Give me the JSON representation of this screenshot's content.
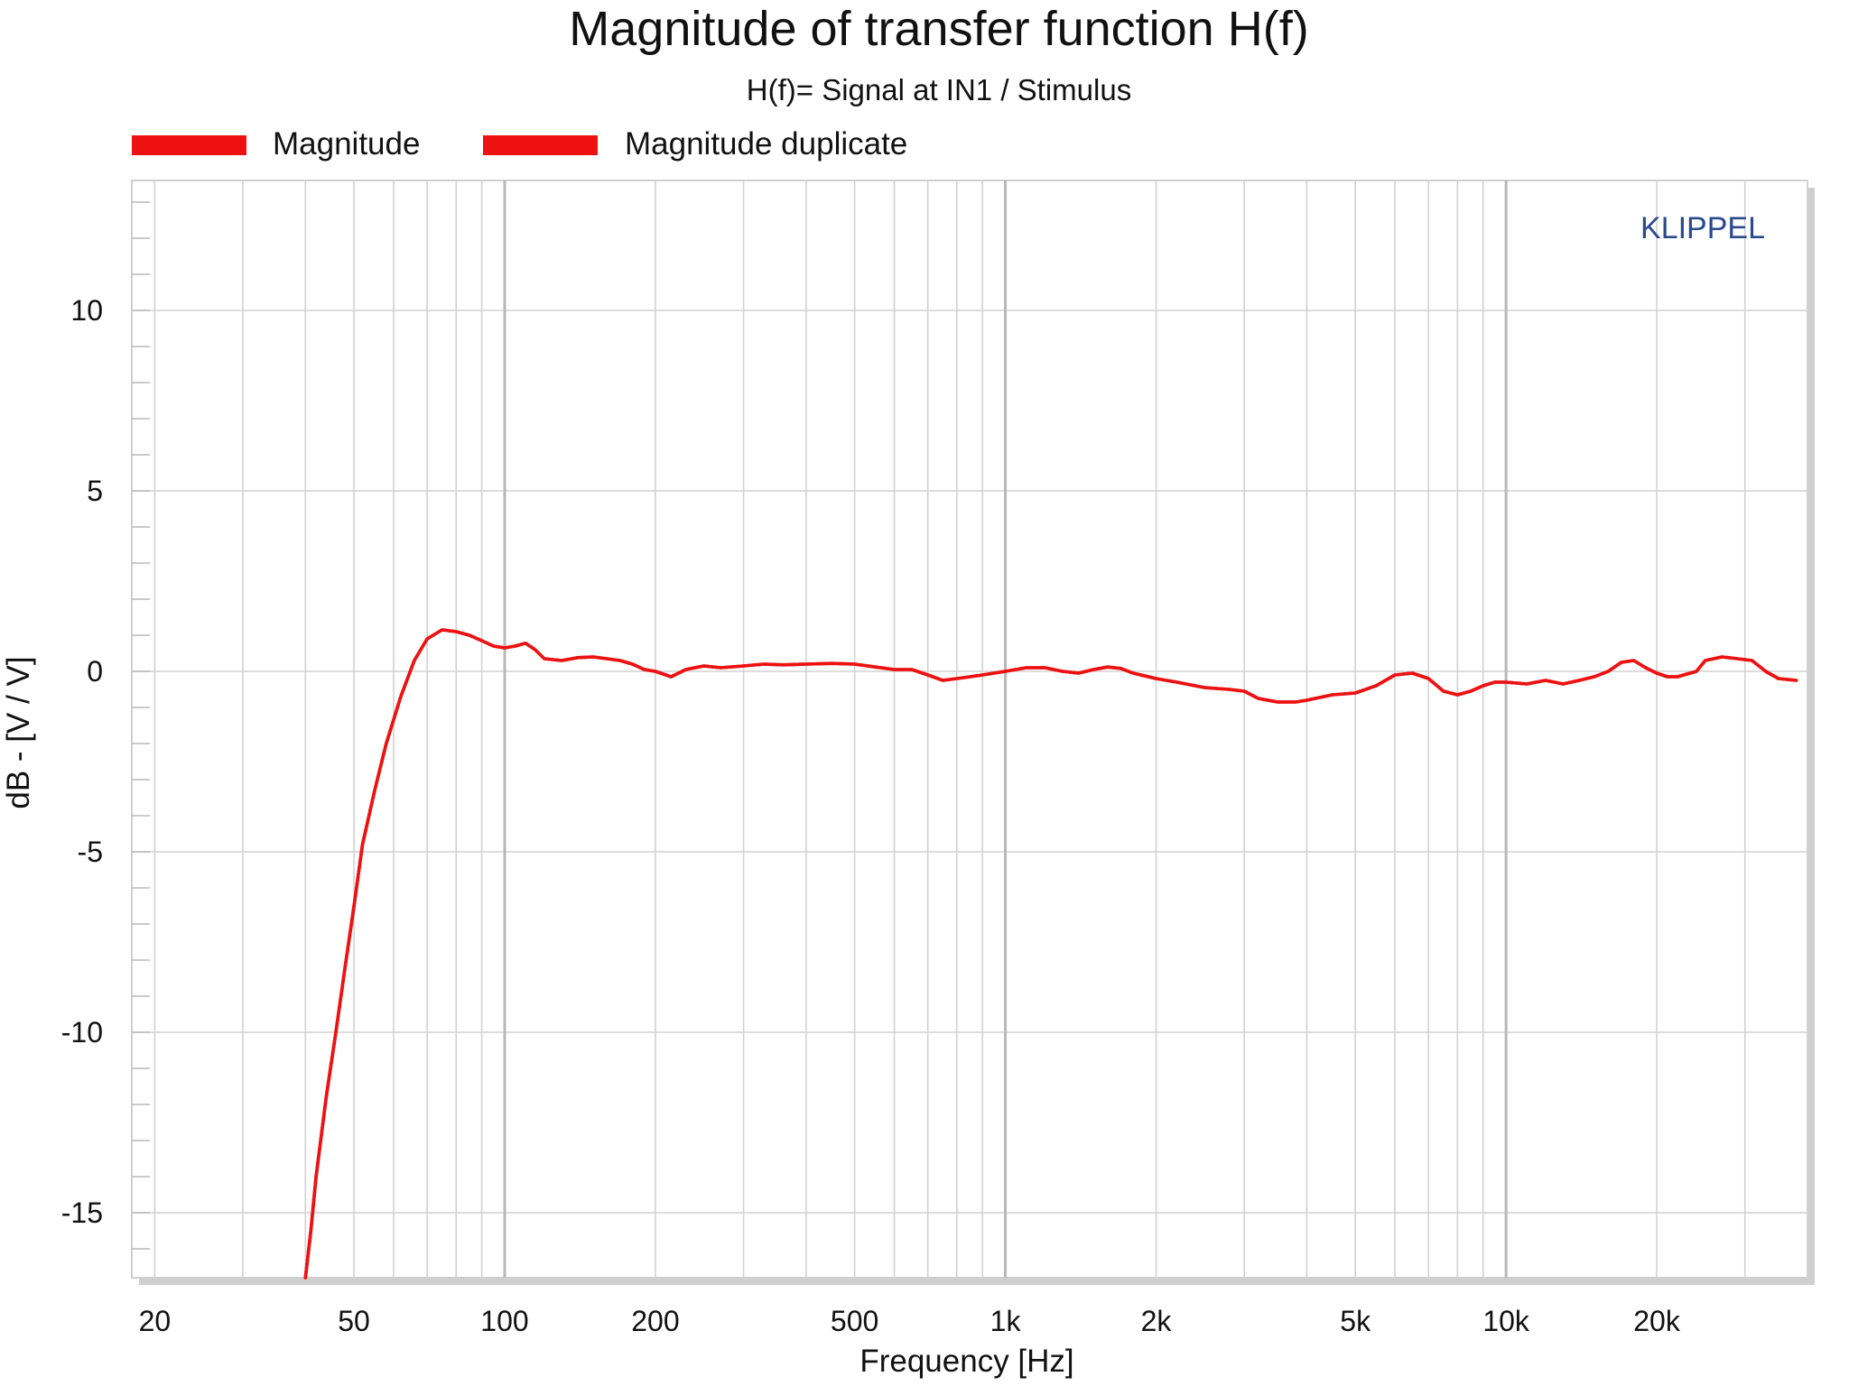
{
  "chart_data": {
    "type": "line",
    "title": "Magnitude of transfer function H(f)",
    "subtitle": "H(f)= Signal at IN1 / Stimulus",
    "xlabel": "Frequency [Hz]",
    "ylabel": "dB - [V / V]",
    "xscale": "log",
    "xlim": [
      18,
      40000
    ],
    "ylim": [
      -16.8,
      13.6
    ],
    "x_ticks": [
      {
        "value": 20,
        "label": "20"
      },
      {
        "value": 50,
        "label": "50"
      },
      {
        "value": 100,
        "label": "100"
      },
      {
        "value": 200,
        "label": "200"
      },
      {
        "value": 500,
        "label": "500"
      },
      {
        "value": 1000,
        "label": "1k"
      },
      {
        "value": 2000,
        "label": "2k"
      },
      {
        "value": 5000,
        "label": "5k"
      },
      {
        "value": 10000,
        "label": "10k"
      },
      {
        "value": 20000,
        "label": "20k"
      }
    ],
    "y_ticks": [
      {
        "value": 10,
        "label": "10"
      },
      {
        "value": 5,
        "label": "5"
      },
      {
        "value": 0,
        "label": "0"
      },
      {
        "value": -5,
        "label": "-5"
      },
      {
        "value": -10,
        "label": "-10"
      },
      {
        "value": -15,
        "label": "-15"
      }
    ],
    "grid": true,
    "legend_position": "top-left",
    "watermark": "KLIPPEL",
    "series": [
      {
        "name": "Magnitude",
        "color": "#ee1111",
        "x": [
          40,
          41,
          42,
          44,
          46,
          48,
          50,
          52,
          55,
          58,
          62,
          66,
          70,
          75,
          80,
          85,
          90,
          95,
          100,
          105,
          110,
          115,
          120,
          130,
          140,
          150,
          160,
          170,
          180,
          190,
          200,
          215,
          230,
          250,
          270,
          300,
          330,
          360,
          400,
          450,
          500,
          550,
          600,
          650,
          700,
          750,
          800,
          850,
          900,
          1000,
          1100,
          1200,
          1300,
          1400,
          1500,
          1600,
          1700,
          1800,
          2000,
          2200,
          2500,
          2800,
          3000,
          3200,
          3500,
          3800,
          4000,
          4500,
          5000,
          5500,
          6000,
          6500,
          7000,
          7500,
          8000,
          8500,
          9000,
          9500,
          10000,
          11000,
          12000,
          13000,
          14000,
          15000,
          16000,
          17000,
          18000,
          19000,
          20000,
          21000,
          22000,
          24000,
          25000,
          27000,
          29000,
          31000,
          33000,
          35000,
          38000
        ],
        "y": [
          -16.8,
          -15.5,
          -14.0,
          -11.8,
          -10.0,
          -8.2,
          -6.5,
          -4.8,
          -3.3,
          -2.0,
          -0.7,
          0.3,
          0.9,
          1.15,
          1.1,
          1.0,
          0.85,
          0.7,
          0.65,
          0.7,
          0.78,
          0.6,
          0.35,
          0.3,
          0.38,
          0.4,
          0.35,
          0.3,
          0.2,
          0.05,
          0.0,
          -0.15,
          0.05,
          0.15,
          0.1,
          0.15,
          0.2,
          0.18,
          0.2,
          0.22,
          0.2,
          0.12,
          0.05,
          0.05,
          -0.1,
          -0.25,
          -0.2,
          -0.15,
          -0.1,
          0.0,
          0.1,
          0.1,
          0.0,
          -0.05,
          0.05,
          0.12,
          0.08,
          -0.05,
          -0.2,
          -0.3,
          -0.45,
          -0.5,
          -0.55,
          -0.75,
          -0.85,
          -0.85,
          -0.8,
          -0.65,
          -0.6,
          -0.4,
          -0.1,
          -0.05,
          -0.2,
          -0.55,
          -0.65,
          -0.55,
          -0.4,
          -0.3,
          -0.3,
          -0.35,
          -0.25,
          -0.35,
          -0.25,
          -0.15,
          0.0,
          0.25,
          0.3,
          0.1,
          -0.05,
          -0.15,
          -0.15,
          0.0,
          0.3,
          0.4,
          0.35,
          0.3,
          0.0,
          -0.2,
          -0.25
        ]
      },
      {
        "name": "Magnitude duplicate",
        "color": "#ee1111",
        "x": [
          40,
          41,
          42,
          44,
          46,
          48,
          50,
          52,
          55,
          58,
          62,
          66,
          70,
          75,
          80,
          85,
          90,
          95,
          100,
          105,
          110,
          115,
          120,
          130,
          140,
          150,
          160,
          170,
          180,
          190,
          200,
          215,
          230,
          250,
          270,
          300,
          330,
          360,
          400,
          450,
          500,
          550,
          600,
          650,
          700,
          750,
          800,
          850,
          900,
          1000,
          1100,
          1200,
          1300,
          1400,
          1500,
          1600,
          1700,
          1800,
          2000,
          2200,
          2500,
          2800,
          3000,
          3200,
          3500,
          3800,
          4000,
          4500,
          5000,
          5500,
          6000,
          6500,
          7000,
          7500,
          8000,
          8500,
          9000,
          9500,
          10000,
          11000,
          12000,
          13000,
          14000,
          15000,
          16000,
          17000,
          18000,
          19000,
          20000,
          21000,
          22000,
          24000,
          25000,
          27000,
          29000,
          31000,
          33000,
          35000,
          38000
        ],
        "y": [
          -16.8,
          -15.5,
          -14.0,
          -11.8,
          -10.0,
          -8.2,
          -6.5,
          -4.8,
          -3.3,
          -2.0,
          -0.7,
          0.3,
          0.9,
          1.15,
          1.1,
          1.0,
          0.85,
          0.7,
          0.65,
          0.7,
          0.78,
          0.6,
          0.35,
          0.3,
          0.38,
          0.4,
          0.35,
          0.3,
          0.2,
          0.05,
          0.0,
          -0.15,
          0.05,
          0.15,
          0.1,
          0.15,
          0.2,
          0.18,
          0.2,
          0.22,
          0.2,
          0.12,
          0.05,
          0.05,
          -0.1,
          -0.25,
          -0.2,
          -0.15,
          -0.1,
          0.0,
          0.1,
          0.1,
          0.0,
          -0.05,
          0.05,
          0.12,
          0.08,
          -0.05,
          -0.2,
          -0.3,
          -0.45,
          -0.5,
          -0.55,
          -0.75,
          -0.85,
          -0.85,
          -0.8,
          -0.65,
          -0.6,
          -0.4,
          -0.1,
          -0.05,
          -0.2,
          -0.55,
          -0.65,
          -0.55,
          -0.4,
          -0.3,
          -0.3,
          -0.35,
          -0.25,
          -0.35,
          -0.25,
          -0.15,
          0.0,
          0.25,
          0.3,
          0.1,
          -0.05,
          -0.15,
          -0.15,
          0.0,
          0.3,
          0.4,
          0.35,
          0.3,
          0.0,
          -0.2,
          -0.25
        ]
      }
    ]
  },
  "colors": {
    "series": "#ee1111",
    "grid": "#d2d2d2",
    "watermark": "#2b4a8c"
  }
}
